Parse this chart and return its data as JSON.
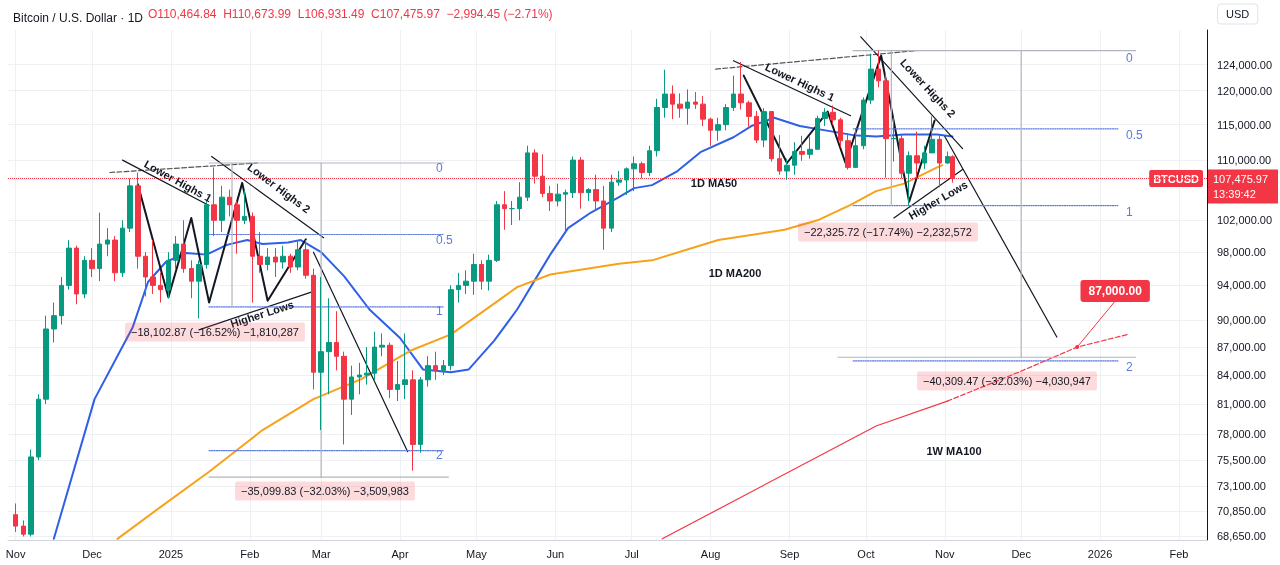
{
  "chart_data": {
    "type": "candlestick",
    "title": "Bitcoin / U.S. Dollar · 1D",
    "x": [
      "2024-11-01",
      "2024-11-04",
      "2024-11-07",
      "2024-11-10",
      "2024-11-13",
      "2024-11-16",
      "2024-11-19",
      "2024-11-22",
      "2024-11-25",
      "2024-11-28",
      "2024-12-01",
      "2024-12-04",
      "2024-12-07",
      "2024-12-10",
      "2024-12-13",
      "2024-12-16",
      "2024-12-19",
      "2024-12-22",
      "2024-12-25",
      "2024-12-28",
      "2024-12-31",
      "2025-01-03",
      "2025-01-06",
      "2025-01-09",
      "2025-01-12",
      "2025-01-15",
      "2025-01-18",
      "2025-01-21",
      "2025-01-24",
      "2025-01-27",
      "2025-01-30",
      "2025-02-02",
      "2025-02-05",
      "2025-02-08",
      "2025-02-11",
      "2025-02-14",
      "2025-02-17",
      "2025-02-20",
      "2025-02-23",
      "2025-02-26",
      "2025-03-01",
      "2025-03-04",
      "2025-03-07",
      "2025-03-10",
      "2025-03-13",
      "2025-03-16",
      "2025-03-19",
      "2025-03-22",
      "2025-03-25",
      "2025-03-28",
      "2025-03-31",
      "2025-04-03",
      "2025-04-06",
      "2025-04-09",
      "2025-04-12",
      "2025-04-15",
      "2025-04-18",
      "2025-04-21",
      "2025-04-24",
      "2025-04-27",
      "2025-04-30",
      "2025-05-03",
      "2025-05-06",
      "2025-05-09",
      "2025-05-12",
      "2025-05-15",
      "2025-05-18",
      "2025-05-21",
      "2025-05-24",
      "2025-05-27",
      "2025-05-30",
      "2025-06-02",
      "2025-06-05",
      "2025-06-08",
      "2025-06-11",
      "2025-06-14",
      "2025-06-17",
      "2025-06-20",
      "2025-06-23",
      "2025-06-26",
      "2025-06-29",
      "2025-07-02",
      "2025-07-05",
      "2025-07-08",
      "2025-07-11",
      "2025-07-14",
      "2025-07-17",
      "2025-07-20",
      "2025-07-23",
      "2025-07-26",
      "2025-07-29",
      "2025-08-01",
      "2025-08-04",
      "2025-08-07",
      "2025-08-10",
      "2025-08-13",
      "2025-08-16",
      "2025-08-19",
      "2025-08-22",
      "2025-08-25",
      "2025-08-28",
      "2025-08-31",
      "2025-09-03",
      "2025-09-06",
      "2025-09-09",
      "2025-09-12",
      "2025-09-15",
      "2025-09-18",
      "2025-09-21",
      "2025-09-24",
      "2025-09-27",
      "2025-09-30",
      "2025-10-03",
      "2025-10-06",
      "2025-10-09",
      "2025-10-12",
      "2025-10-15",
      "2025-10-18",
      "2025-10-21",
      "2025-10-24",
      "2025-10-27",
      "2025-10-30",
      "2025-11-02",
      "2025-11-04"
    ],
    "ohlc": [
      [
        70500,
        71500,
        69000,
        69500
      ],
      [
        69500,
        70000,
        68600,
        68800
      ],
      [
        68800,
        76500,
        68600,
        75800
      ],
      [
        75800,
        82000,
        75500,
        81500
      ],
      [
        81500,
        90500,
        81000,
        89000
      ],
      [
        89000,
        92000,
        87500,
        90500
      ],
      [
        90500,
        95000,
        89500,
        94000
      ],
      [
        94000,
        99500,
        93500,
        98500
      ],
      [
        98500,
        98800,
        91800,
        93000
      ],
      [
        93000,
        97500,
        92500,
        97000
      ],
      [
        97000,
        98500,
        95000,
        96000
      ],
      [
        96000,
        103000,
        94500,
        99000
      ],
      [
        99000,
        101000,
        97500,
        99500
      ],
      [
        99500,
        100000,
        94500,
        95500
      ],
      [
        95500,
        102000,
        95000,
        101000
      ],
      [
        101000,
        107500,
        100500,
        106500
      ],
      [
        106500,
        108300,
        96000,
        97500
      ],
      [
        97500,
        98000,
        92700,
        95000
      ],
      [
        95000,
        99500,
        93000,
        94000
      ],
      [
        94000,
        95500,
        92000,
        93500
      ],
      [
        93500,
        98000,
        92500,
        97000
      ],
      [
        97000,
        100000,
        96000,
        99000
      ],
      [
        99000,
        102000,
        95500,
        96000
      ],
      [
        96000,
        97000,
        92500,
        94500
      ],
      [
        94500,
        97000,
        90200,
        96500
      ],
      [
        96500,
        104500,
        96000,
        104000
      ],
      [
        104000,
        109000,
        100000,
        102000
      ],
      [
        102000,
        106500,
        100500,
        105000
      ],
      [
        105000,
        106000,
        102500,
        104000
      ],
      [
        104000,
        104500,
        97800,
        102000
      ],
      [
        102000,
        106000,
        101500,
        102500
      ],
      [
        102500,
        103000,
        92000,
        97500
      ],
      [
        97500,
        100500,
        95500,
        96500
      ],
      [
        96500,
        98500,
        95800,
        97400
      ],
      [
        97400,
        98500,
        95000,
        96800
      ],
      [
        96800,
        98800,
        96000,
        97500
      ],
      [
        97500,
        97800,
        95500,
        96200
      ],
      [
        96200,
        99500,
        95800,
        98300
      ],
      [
        98300,
        99500,
        94800,
        95200
      ],
      [
        95200,
        96000,
        82500,
        84300
      ],
      [
        84300,
        95000,
        78400,
        86500
      ],
      [
        86500,
        92500,
        82000,
        87500
      ],
      [
        87500,
        91000,
        84500,
        86000
      ],
      [
        86000,
        86500,
        77000,
        81500
      ],
      [
        81500,
        85000,
        79900,
        83800
      ],
      [
        83800,
        85300,
        82000,
        84000
      ],
      [
        84000,
        87000,
        83000,
        84200
      ],
      [
        84200,
        88700,
        83500,
        87000
      ],
      [
        87000,
        88500,
        86000,
        87200
      ],
      [
        87200,
        87500,
        81600,
        82500
      ],
      [
        82500,
        85500,
        81300,
        83000
      ],
      [
        83000,
        88500,
        81500,
        83500
      ],
      [
        83500,
        84500,
        74500,
        77000
      ],
      [
        77000,
        83800,
        76200,
        83500
      ],
      [
        83500,
        86000,
        82800,
        85000
      ],
      [
        85000,
        86500,
        83500,
        84500
      ],
      [
        84500,
        85600,
        84000,
        85000
      ],
      [
        85000,
        94000,
        84500,
        93500
      ],
      [
        93500,
        95500,
        92000,
        94000
      ],
      [
        94000,
        95800,
        93000,
        94500
      ],
      [
        94500,
        97800,
        92900,
        96500
      ],
      [
        96500,
        97000,
        93500,
        94500
      ],
      [
        94500,
        97700,
        93400,
        97000
      ],
      [
        97000,
        104500,
        96800,
        104000
      ],
      [
        104000,
        105800,
        100800,
        103500
      ],
      [
        103500,
        104500,
        101400,
        103500
      ],
      [
        103500,
        107000,
        102000,
        105000
      ],
      [
        105000,
        112000,
        104500,
        111000
      ],
      [
        111000,
        111500,
        106800,
        107800
      ],
      [
        107800,
        110800,
        105000,
        105500
      ],
      [
        105500,
        106500,
        103200,
        104500
      ],
      [
        104500,
        106800,
        103800,
        105400
      ],
      [
        105400,
        106000,
        100500,
        105600
      ],
      [
        105600,
        110500,
        104900,
        110000
      ],
      [
        110000,
        110400,
        103500,
        105600
      ],
      [
        105600,
        106200,
        104500,
        106000
      ],
      [
        106000,
        108000,
        103400,
        104500
      ],
      [
        104500,
        106500,
        98300,
        101000
      ],
      [
        101000,
        108000,
        100500,
        107000
      ],
      [
        107000,
        108500,
        106500,
        107300
      ],
      [
        107300,
        109000,
        105300,
        108800
      ],
      [
        108800,
        110500,
        105800,
        109500
      ],
      [
        109500,
        109800,
        107500,
        108300
      ],
      [
        108300,
        112000,
        107800,
        111300
      ],
      [
        111300,
        118800,
        110500,
        117500
      ],
      [
        117500,
        123200,
        116000,
        119500
      ],
      [
        119500,
        120800,
        115800,
        118000
      ],
      [
        118000,
        119600,
        116000,
        117400
      ],
      [
        117400,
        120200,
        115000,
        118300
      ],
      [
        118300,
        119800,
        117300,
        118000
      ],
      [
        118000,
        119200,
        114800,
        115800
      ],
      [
        115800,
        116000,
        112000,
        114200
      ],
      [
        114200,
        116000,
        112700,
        115000
      ],
      [
        115000,
        118000,
        114200,
        117500
      ],
      [
        117500,
        122300,
        117000,
        119500
      ],
      [
        119500,
        124400,
        117200,
        118200
      ],
      [
        118200,
        118500,
        114700,
        116200
      ],
      [
        116200,
        117000,
        112400,
        112800
      ],
      [
        112800,
        117400,
        111800,
        116900
      ],
      [
        116900,
        117000,
        109800,
        110200
      ],
      [
        110200,
        113500,
        108000,
        108500
      ],
      [
        108500,
        110200,
        107300,
        109300
      ],
      [
        109300,
        112500,
        108000,
        111200
      ],
      [
        111200,
        113400,
        109900,
        110800
      ],
      [
        110800,
        113300,
        110200,
        111500
      ],
      [
        111500,
        116300,
        111500,
        115900
      ],
      [
        115900,
        117400,
        114800,
        116800
      ],
      [
        116800,
        117800,
        115000,
        115700
      ],
      [
        115700,
        116000,
        111800,
        112700
      ],
      [
        112700,
        113800,
        108700,
        109000
      ],
      [
        109000,
        114500,
        108900,
        112000
      ],
      [
        112000,
        119000,
        111500,
        118600
      ],
      [
        118600,
        125700,
        118000,
        123300
      ],
      [
        123300,
        126200,
        120500,
        121500
      ],
      [
        121500,
        122500,
        107600,
        113000
      ],
      [
        113000,
        116000,
        109800,
        113000
      ],
      [
        113000,
        113500,
        107500,
        108200
      ],
      [
        108200,
        111200,
        103900,
        110600
      ],
      [
        110600,
        114000,
        107500,
        109600
      ],
      [
        109600,
        112000,
        108800,
        111000
      ],
      [
        111000,
        116200,
        111000,
        112900
      ],
      [
        112900,
        113600,
        106300,
        109600
      ],
      [
        109600,
        111200,
        109500,
        110500
      ],
      [
        110464.84,
        110673.99,
        106931.49,
        107475.97
      ]
    ],
    "series": [
      {
        "type": "line",
        "color": "#2f5fe8",
        "x": [
          "2024-11-16",
          "2024-12-02",
          "2024-12-17",
          "2024-12-23",
          "2024-12-30",
          "2025-01-07",
          "2025-01-15",
          "2025-01-23",
          "2025-01-31",
          "2025-02-06",
          "2025-02-16",
          "2025-02-21",
          "2025-03-01",
          "2025-03-10",
          "2025-03-20",
          "2025-04-01",
          "2025-04-10",
          "2025-04-21",
          "2025-04-28",
          "2025-05-08",
          "2025-05-17",
          "2025-05-30",
          "2025-06-06",
          "2025-06-15",
          "2025-06-26",
          "2025-07-02",
          "2025-07-09",
          "2025-07-19",
          "2025-07-28",
          "2025-08-10",
          "2025-08-17",
          "2025-08-26",
          "2025-09-05",
          "2025-09-18",
          "2025-09-26",
          "2025-10-05",
          "2025-10-16",
          "2025-10-29",
          "2025-11-04"
        ],
        "values": [
          68400,
          81500,
          89200,
          94400,
          96800,
          97900,
          97700,
          98900,
          99500,
          99000,
          99200,
          99500,
          98000,
          95100,
          91200,
          88000,
          84600,
          84300,
          84600,
          87700,
          91200,
          97700,
          101000,
          103000,
          105000,
          106200,
          106600,
          108500,
          111100,
          113200,
          114800,
          116000,
          114800,
          114000,
          113500,
          113300,
          113600,
          113600,
          113300
        ]
      },
      {
        "type": "line",
        "color": "#f7a21b",
        "x": [
          "2024-12-11",
          "2024-12-28",
          "2025-01-16",
          "2025-02-06",
          "2025-02-26",
          "2025-03-17",
          "2025-04-05",
          "2025-04-21",
          "2025-05-17",
          "2025-05-30",
          "2025-06-26",
          "2025-07-09",
          "2025-08-04",
          "2025-08-30",
          "2025-09-12",
          "2025-09-25",
          "2025-10-05",
          "2025-10-16",
          "2025-10-29",
          "2025-10-31"
        ],
        "values": [
          68400,
          71200,
          74400,
          78400,
          81500,
          83600,
          86600,
          88400,
          93800,
          95300,
          96600,
          97000,
          99500,
          100800,
          102000,
          104000,
          105800,
          106800,
          109000,
          109300
        ]
      },
      {
        "type": "line",
        "color": "#f23645",
        "x": [
          "2025-07-13",
          "2025-10-05",
          "2025-11-02"
        ],
        "values": [
          68400,
          78800,
          81300
        ]
      },
      {
        "type": "line",
        "color": "#f23645",
        "line_style": "dashed",
        "x": [
          "2025-11-02",
          "2025-11-30",
          "2025-12-23",
          "2026-01-12"
        ],
        "values": [
          81300,
          84300,
          87000,
          88400
        ]
      },
      {
        "type": "line",
        "color": "#555555",
        "line_style": "dashed",
        "x": [
          "2024-12-08",
          "2025-02-04"
        ],
        "values": [
          108300,
          109600
        ]
      },
      {
        "type": "line",
        "color": "#131722",
        "x": [
          "2024-12-13",
          "2025-01-16"
        ],
        "values": [
          110000,
          103900
        ]
      },
      {
        "type": "line",
        "color": "#131722",
        "x": [
          "2025-01-17",
          "2025-03-02"
        ],
        "values": [
          110500,
          99800
        ]
      },
      {
        "type": "line",
        "color": "#131722",
        "x": [
          "2024-12-19",
          "2024-12-31",
          "2025-01-09",
          "2025-01-16",
          "2025-01-29",
          "2025-02-08",
          "2025-02-23"
        ],
        "values": [
          106700,
          92600,
          102300,
          92000,
          106900,
          92200,
          99600
        ]
      },
      {
        "type": "line",
        "color": "#131722",
        "x": [
          "2025-01-12",
          "2025-02-26"
        ],
        "values": [
          88900,
          93300
        ]
      },
      {
        "type": "line",
        "color": "#131722",
        "x": [
          "2025-02-26",
          "2025-04-04"
        ],
        "values": [
          98000,
          76300
        ]
      },
      {
        "type": "line",
        "color": "#555555",
        "line_style": "dashed",
        "x": [
          "2025-08-03",
          "2025-10-21"
        ],
        "values": [
          123300,
          126200
        ]
      },
      {
        "type": "line",
        "color": "#131722",
        "x": [
          "2025-08-10",
          "2025-09-25"
        ],
        "values": [
          124600,
          116300
        ]
      },
      {
        "type": "line",
        "color": "#131722",
        "x": [
          "2025-09-29",
          "2025-11-08"
        ],
        "values": [
          128400,
          111600
        ]
      },
      {
        "type": "line",
        "color": "#131722",
        "x": [
          "2025-08-14",
          "2025-08-31",
          "2025-09-16",
          "2025-09-23",
          "2025-10-07",
          "2025-10-18",
          "2025-10-28"
        ],
        "values": [
          122300,
          109600,
          116900,
          109600,
          125400,
          104400,
          115600
        ]
      },
      {
        "type": "line",
        "color": "#131722",
        "x": [
          "2025-10-12",
          "2025-11-08"
        ],
        "values": [
          102300,
          108700
        ]
      },
      {
        "type": "line",
        "color": "#131722",
        "x": [
          "2025-11-01",
          "2025-12-15"
        ],
        "values": [
          113300,
          88100
        ]
      },
      {
        "type": "line",
        "color": "#b2b5be",
        "x": [
          "2025-01-16",
          "2025-04-18"
        ],
        "values": [
          109600,
          109600
        ]
      },
      {
        "type": "line",
        "color": "#5b7be0",
        "line_style": "dotted",
        "x": [
          "2025-01-16",
          "2025-04-18"
        ],
        "values": [
          100200,
          100200
        ]
      },
      {
        "type": "line",
        "color": "#5b7be0",
        "line_style": "dotted",
        "x": [
          "2025-01-16",
          "2025-04-18"
        ],
        "values": [
          91500,
          91500
        ]
      },
      {
        "type": "line",
        "color": "#5b7be0",
        "line_style": "dotted",
        "x": [
          "2025-01-16",
          "2025-04-18"
        ],
        "values": [
          76400,
          76400
        ]
      },
      {
        "type": "line",
        "color": "#b2b5be",
        "x": [
          "2025-01-25",
          "2025-01-25"
        ],
        "values": [
          109600,
          91500
        ]
      },
      {
        "type": "line",
        "color": "#b2b5be",
        "x": [
          "2025-03-01",
          "2025-03-01"
        ],
        "values": [
          109600,
          73900
        ]
      },
      {
        "type": "line",
        "color": "#b2b5be",
        "x": [
          "2025-01-16",
          "2025-04-20"
        ],
        "values": [
          73900,
          73900
        ]
      },
      {
        "type": "line",
        "color": "#b2b5be",
        "x": [
          "2025-09-26",
          "2026-01-15"
        ],
        "values": [
          126200,
          126200
        ]
      },
      {
        "type": "line",
        "color": "#5b7be0",
        "line_style": "dotted",
        "x": [
          "2025-09-26",
          "2026-01-08"
        ],
        "values": [
          114400,
          114400
        ]
      },
      {
        "type": "line",
        "color": "#5b7be0",
        "line_style": "dotted",
        "x": [
          "2025-09-26",
          "2026-01-08"
        ],
        "values": [
          103900,
          103900
        ]
      },
      {
        "type": "line",
        "color": "#5b7be0",
        "line_style": "dotted",
        "x": [
          "2025-09-26",
          "2026-01-08"
        ],
        "values": [
          85500,
          85500
        ]
      },
      {
        "type": "line",
        "color": "#b2b5be",
        "x": [
          "2025-10-11",
          "2025-10-11"
        ],
        "values": [
          126200,
          103900
        ]
      },
      {
        "type": "line",
        "color": "#b2b5be",
        "x": [
          "2025-12-01",
          "2025-12-01"
        ],
        "values": [
          126200,
          85900
        ]
      },
      {
        "type": "line",
        "color": "#b2b5be",
        "x": [
          "2025-09-20",
          "2026-01-15"
        ],
        "values": [
          85900,
          85900
        ]
      }
    ],
    "xlim": [
      "2024-10-29",
      "2026-02-12"
    ],
    "xticks": [
      {
        "value": "2024-11-01",
        "label": "Nov"
      },
      {
        "value": "2024-12-01",
        "label": "Dec"
      },
      {
        "value": "2025-01-01",
        "label": "2025"
      },
      {
        "value": "2025-02-01",
        "label": "Feb"
      },
      {
        "value": "2025-03-01",
        "label": "Mar"
      },
      {
        "value": "2025-04-01",
        "label": "Apr"
      },
      {
        "value": "2025-05-01",
        "label": "May"
      },
      {
        "value": "2025-06-01",
        "label": "Jun"
      },
      {
        "value": "2025-07-01",
        "label": "Jul"
      },
      {
        "value": "2025-08-01",
        "label": "Aug"
      },
      {
        "value": "2025-09-01",
        "label": "Sep"
      },
      {
        "value": "2025-10-01",
        "label": "Oct"
      },
      {
        "value": "2025-11-01",
        "label": "Nov"
      },
      {
        "value": "2025-12-01",
        "label": "Dec"
      },
      {
        "value": "2026-01-01",
        "label": "2026"
      },
      {
        "value": "2026-02-01",
        "label": "Feb"
      }
    ],
    "ylim": [
      68300,
      129500
    ],
    "yticks": [
      {
        "value": 68650,
        "label": "68,650.00"
      },
      {
        "value": 70850,
        "label": "70,850.00"
      },
      {
        "value": 73100,
        "label": "73,100.00"
      },
      {
        "value": 75500,
        "label": "75,500.00"
      },
      {
        "value": 78000,
        "label": "78,000.00"
      },
      {
        "value": 81000,
        "label": "81,000.00"
      },
      {
        "value": 84000,
        "label": "84,000.00"
      },
      {
        "value": 87000,
        "label": "87,000.00"
      },
      {
        "value": 90000,
        "label": "90,000.00"
      },
      {
        "value": 94000,
        "label": "94,000.00"
      },
      {
        "value": 98000,
        "label": "98,000.00"
      },
      {
        "value": 102000,
        "label": "102,000.00"
      },
      {
        "value": 110000,
        "label": "110,000.00"
      },
      {
        "value": 115000,
        "label": "115,000.00"
      },
      {
        "value": 120000,
        "label": "120,000.00"
      },
      {
        "value": 124000,
        "label": "124,000.00"
      }
    ],
    "log": "y",
    "grid": true,
    "marker": "none",
    "ref_lines": [
      {
        "axis": "y",
        "value": 107475.97,
        "label": "BTCUSD",
        "color": "#f23645",
        "line_style": "dotted"
      }
    ],
    "annotations": [
      "O110,464.84  H110,673.99  L106,931.49  C107,475.97  −2,994.45 (−2.71%)",
      "USD",
      "107,475.97",
      "13:39:42",
      "Lower Highs 1",
      "Lower Highs 2",
      "Higher Lows",
      "−18,102.87 (−16.52%) −1,810,287",
      "−35,099.83 (−32.03%) −3,509,983",
      "0",
      "0.5",
      "1",
      "2",
      "1D MA50",
      "1D MA200",
      "1W MA100",
      "Lower Highs 1",
      "Lower Highs 2",
      "Higher Lows",
      "−22,325.72 (−17.74%) −2,232,572",
      "−40,309.47 (−32.03%) −4,030,947",
      {
        "text": "87,000.00",
        "x": "2025-12-23",
        "y": 87000
      },
      "0",
      "0.5",
      "1",
      "2"
    ]
  }
}
